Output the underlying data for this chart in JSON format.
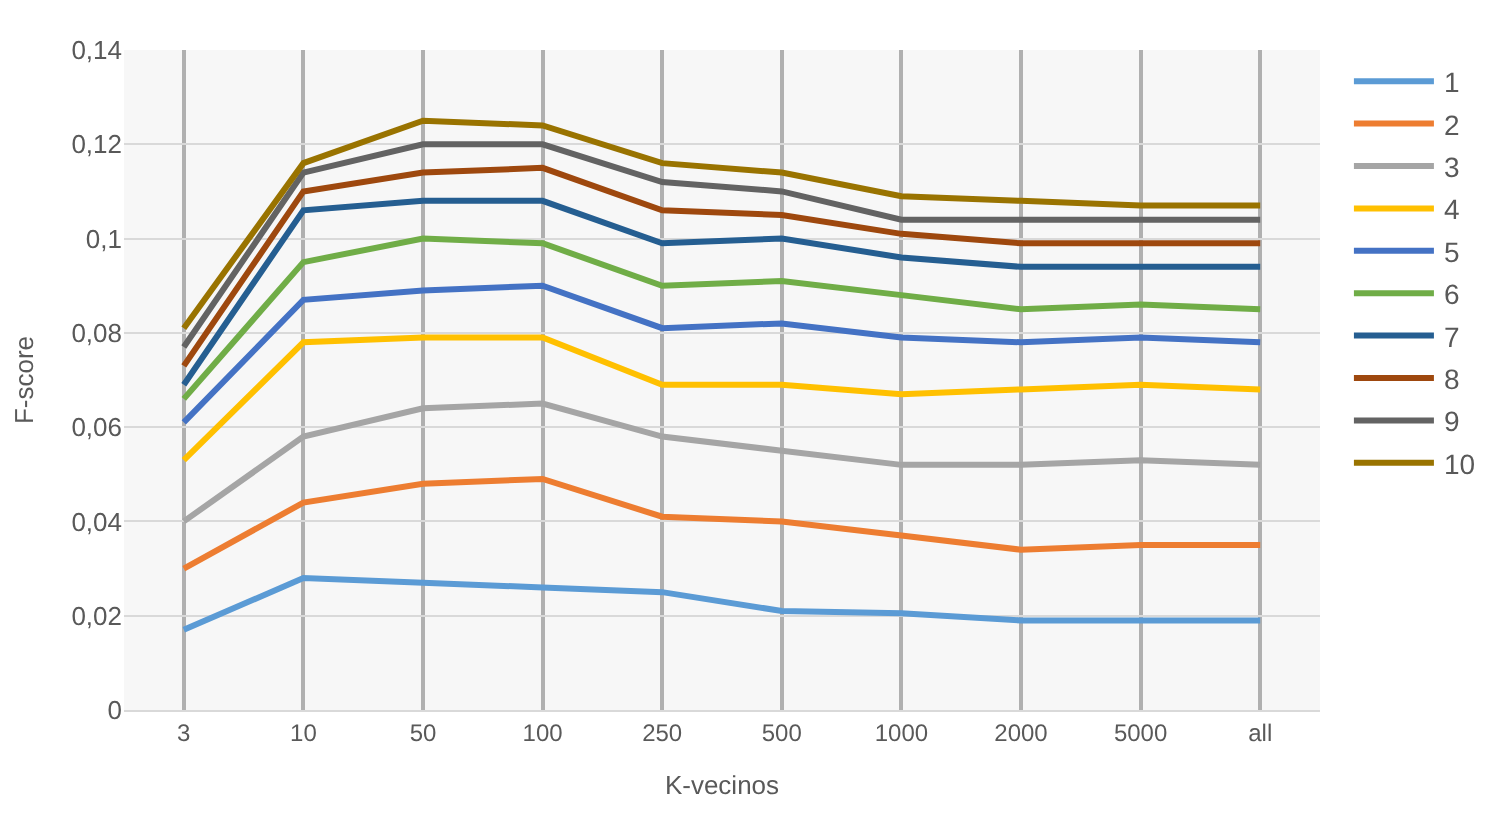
{
  "chart_data": {
    "type": "line",
    "xlabel": "K-vecinos",
    "ylabel": "F-score",
    "categories": [
      "3",
      "10",
      "50",
      "100",
      "250",
      "500",
      "1000",
      "2000",
      "5000",
      "all"
    ],
    "series": [
      {
        "name": "1",
        "color": "#5b9bd5",
        "values": [
          0.017,
          0.028,
          0.027,
          0.026,
          0.025,
          0.021,
          0.0205,
          0.019,
          0.019,
          0.019
        ]
      },
      {
        "name": "2",
        "color": "#ed7d31",
        "values": [
          0.03,
          0.044,
          0.048,
          0.049,
          0.041,
          0.04,
          0.037,
          0.034,
          0.035,
          0.035
        ]
      },
      {
        "name": "3",
        "color": "#a5a5a5",
        "values": [
          0.04,
          0.058,
          0.064,
          0.065,
          0.058,
          0.055,
          0.052,
          0.052,
          0.053,
          0.052
        ]
      },
      {
        "name": "4",
        "color": "#ffc000",
        "values": [
          0.053,
          0.078,
          0.079,
          0.079,
          0.069,
          0.069,
          0.067,
          0.068,
          0.069,
          0.068
        ]
      },
      {
        "name": "5",
        "color": "#4472c4",
        "values": [
          0.061,
          0.087,
          0.089,
          0.09,
          0.081,
          0.082,
          0.079,
          0.078,
          0.079,
          0.078
        ]
      },
      {
        "name": "6",
        "color": "#70ad47",
        "values": [
          0.066,
          0.095,
          0.1,
          0.099,
          0.09,
          0.091,
          0.088,
          0.085,
          0.086,
          0.085
        ]
      },
      {
        "name": "7",
        "color": "#255e91",
        "values": [
          0.069,
          0.106,
          0.108,
          0.108,
          0.099,
          0.1,
          0.096,
          0.094,
          0.094,
          0.094
        ]
      },
      {
        "name": "8",
        "color": "#9e480e",
        "values": [
          0.073,
          0.11,
          0.114,
          0.115,
          0.106,
          0.105,
          0.101,
          0.099,
          0.099,
          0.099
        ]
      },
      {
        "name": "9",
        "color": "#636363",
        "values": [
          0.077,
          0.114,
          0.12,
          0.12,
          0.112,
          0.11,
          0.104,
          0.104,
          0.104,
          0.104
        ]
      },
      {
        "name": "10",
        "color": "#997300",
        "values": [
          0.081,
          0.116,
          0.125,
          0.124,
          0.116,
          0.114,
          0.109,
          0.108,
          0.107,
          0.107
        ]
      }
    ],
    "ylim": [
      0,
      0.14
    ],
    "yticks": [
      0,
      {
        "value": 0.02,
        "label": "0,02"
      },
      {
        "value": 0.04,
        "label": "0,04"
      },
      {
        "value": 0.06,
        "label": "0,06"
      },
      {
        "value": 0.08,
        "label": "0,08"
      },
      {
        "value": 0.1,
        "label": "0,1"
      },
      {
        "value": 0.12,
        "label": "0,12"
      },
      {
        "value": 0.14,
        "label": "0,14"
      }
    ],
    "grid": true,
    "legend": "right",
    "marker": "none",
    "line_style": "solid"
  }
}
